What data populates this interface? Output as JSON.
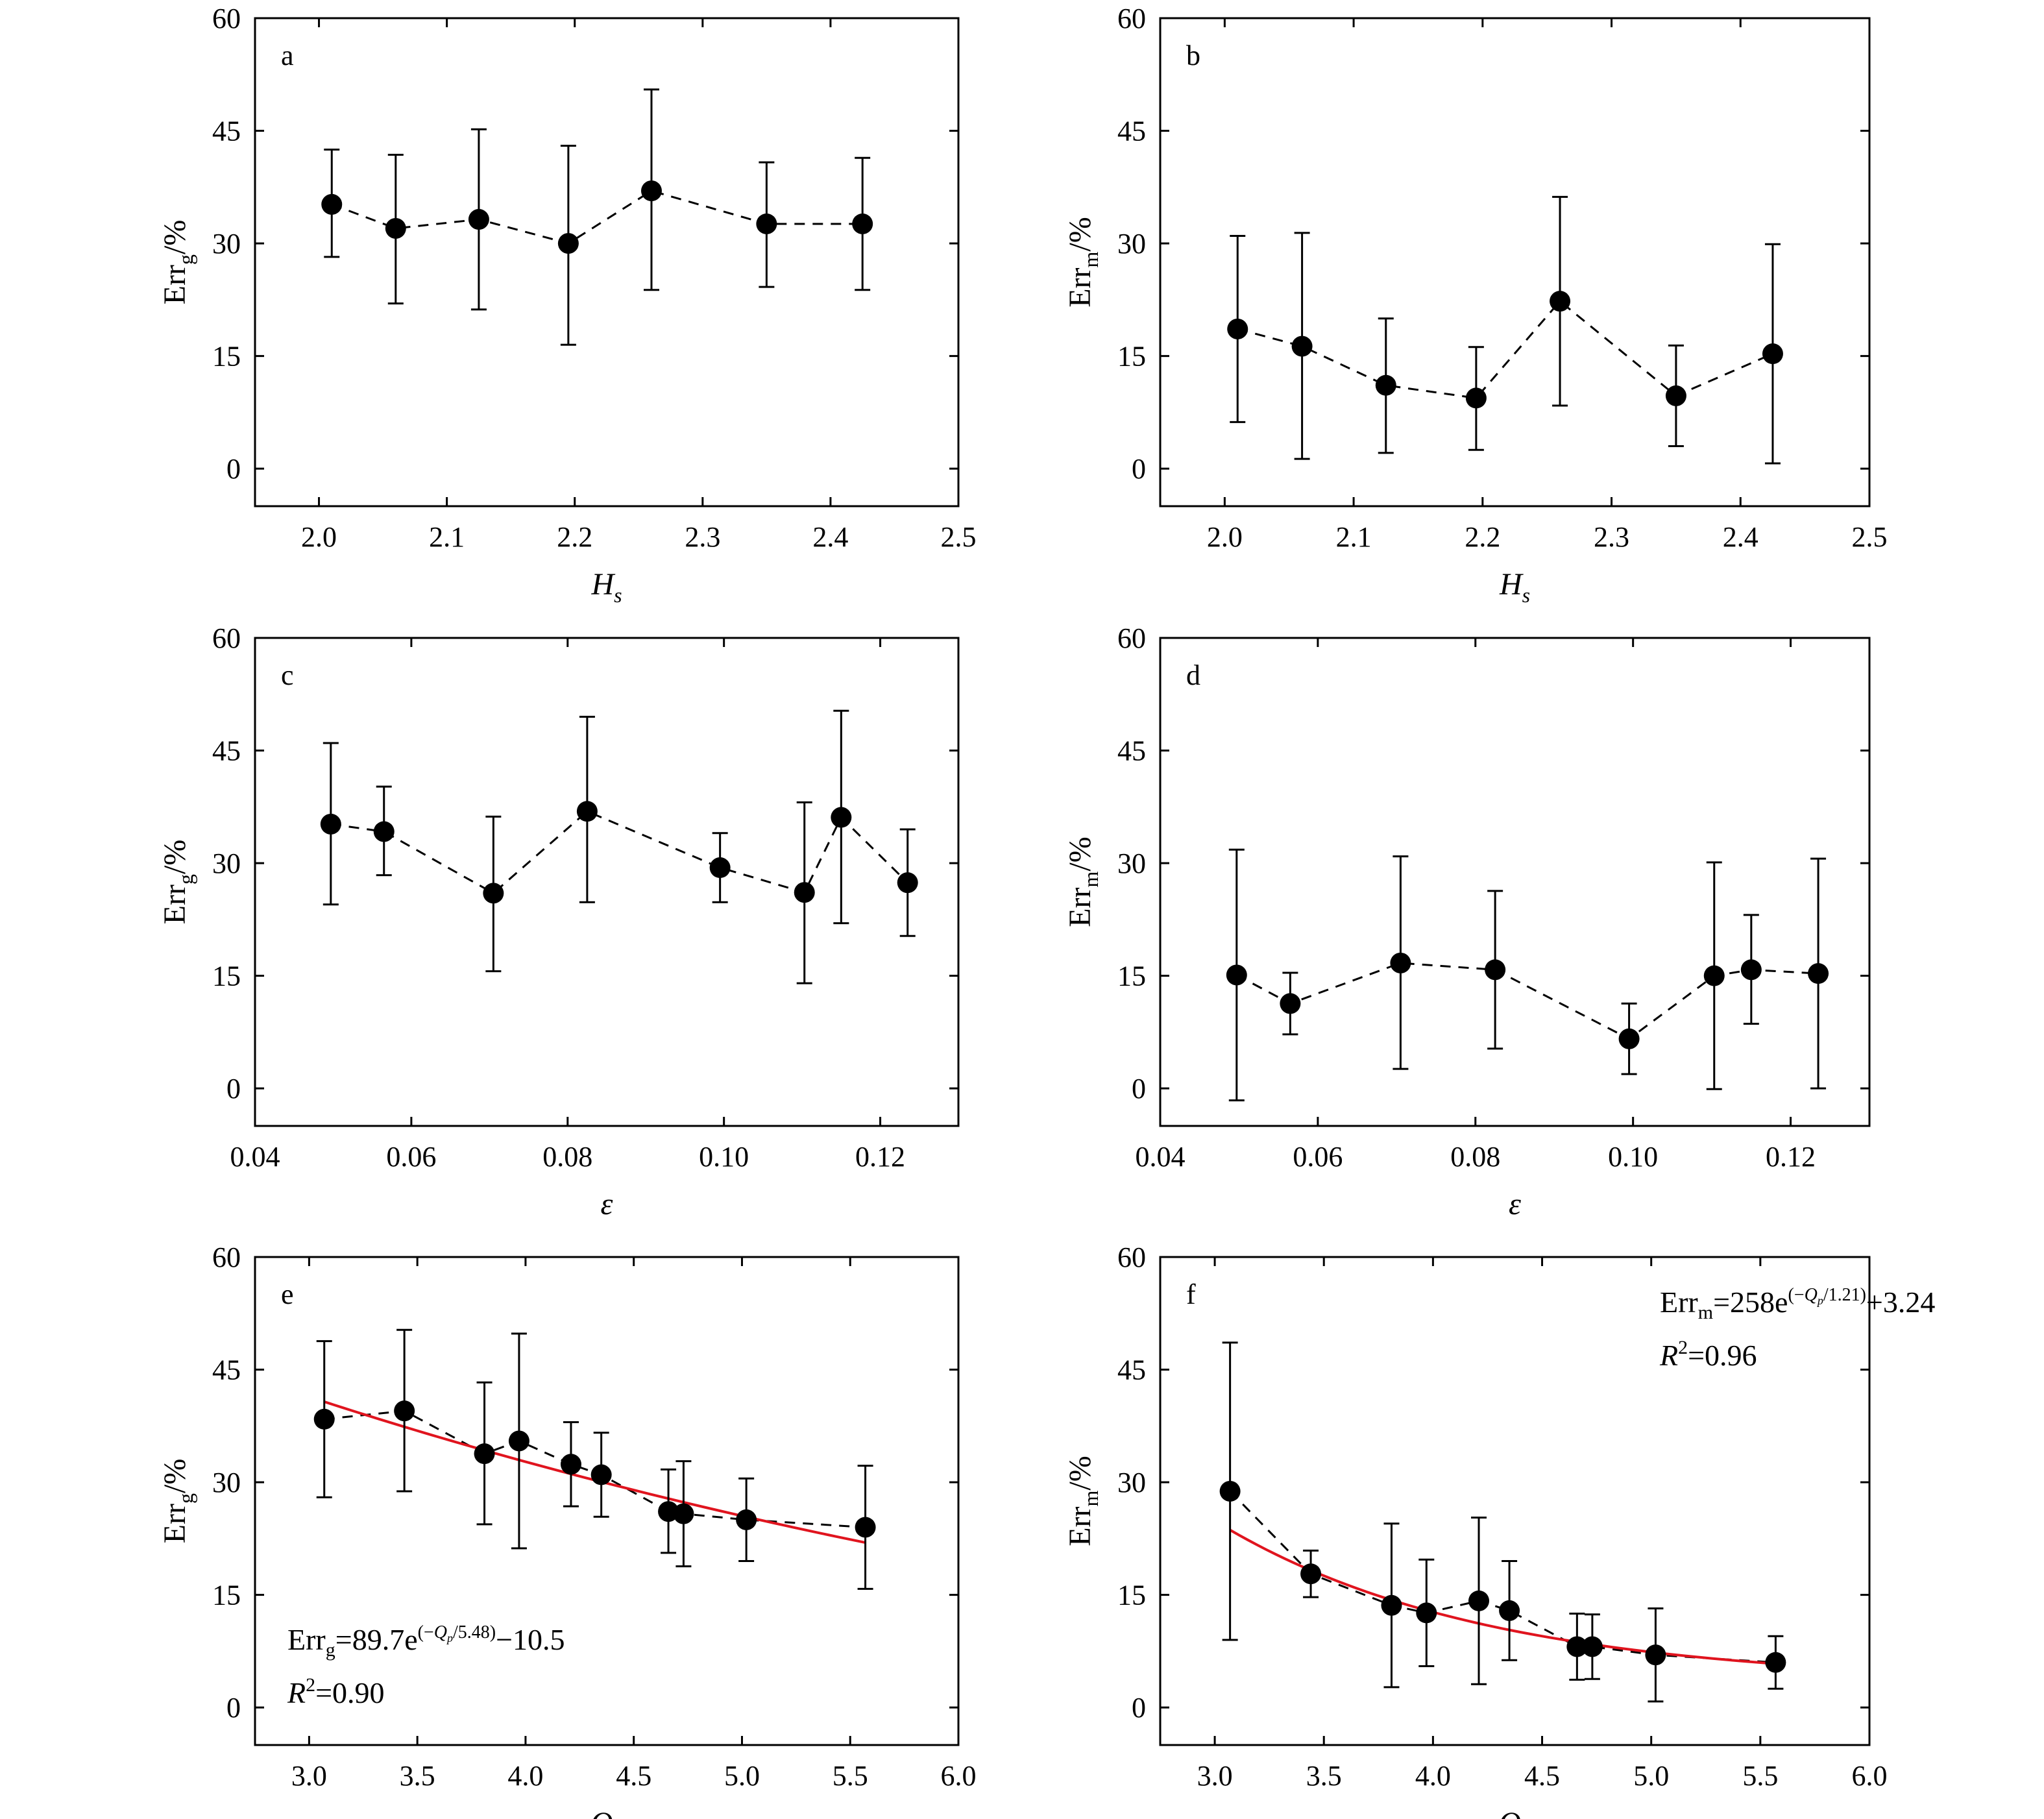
{
  "colors": {
    "data": "#000000",
    "fit": "#e0141e"
  },
  "chart_data": [
    {
      "panel": "a",
      "type": "scatter",
      "xlabel": {
        "base": "H",
        "sub": "s",
        "italic": true
      },
      "ylabel": {
        "base": "Err",
        "sub": "g",
        "suffix": "/%"
      },
      "xlim": [
        1.95,
        2.5
      ],
      "ylim": [
        -5,
        60
      ],
      "xticks": [
        2.0,
        2.1,
        2.2,
        2.3,
        2.4,
        2.5
      ],
      "xtick_labels": [
        "2.0",
        "2.1",
        "2.2",
        "2.3",
        "2.4",
        "2.5"
      ],
      "yticks": [
        0,
        15,
        30,
        45,
        60
      ],
      "ytick_labels": [
        "0",
        "15",
        "30",
        "45",
        "60"
      ],
      "points": [
        {
          "x": 2.01,
          "y": 35.2,
          "lo": 28.2,
          "hi": 42.5
        },
        {
          "x": 2.06,
          "y": 32.0,
          "lo": 22.0,
          "hi": 41.8
        },
        {
          "x": 2.125,
          "y": 33.2,
          "lo": 21.2,
          "hi": 45.2
        },
        {
          "x": 2.195,
          "y": 30.0,
          "lo": 16.5,
          "hi": 43.0
        },
        {
          "x": 2.26,
          "y": 37.0,
          "lo": 23.8,
          "hi": 50.5
        },
        {
          "x": 2.35,
          "y": 32.6,
          "lo": 24.2,
          "hi": 40.8
        },
        {
          "x": 2.425,
          "y": 32.6,
          "lo": 23.8,
          "hi": 41.4
        }
      ]
    },
    {
      "panel": "b",
      "type": "scatter",
      "xlabel": {
        "base": "H",
        "sub": "s",
        "italic": true
      },
      "ylabel": {
        "base": "Err",
        "sub": "m",
        "suffix": "/%"
      },
      "xlim": [
        1.95,
        2.5
      ],
      "ylim": [
        -5,
        60
      ],
      "xticks": [
        2.0,
        2.1,
        2.2,
        2.3,
        2.4,
        2.5
      ],
      "xtick_labels": [
        "2.0",
        "2.1",
        "2.2",
        "2.3",
        "2.4",
        "2.5"
      ],
      "yticks": [
        0,
        15,
        30,
        45,
        60
      ],
      "ytick_labels": [
        "0",
        "15",
        "30",
        "45",
        "60"
      ],
      "points": [
        {
          "x": 2.01,
          "y": 18.6,
          "lo": 6.2,
          "hi": 31.0
        },
        {
          "x": 2.06,
          "y": 16.3,
          "lo": 1.3,
          "hi": 31.4
        },
        {
          "x": 2.125,
          "y": 11.1,
          "lo": 2.1,
          "hi": 20.0
        },
        {
          "x": 2.195,
          "y": 9.4,
          "lo": 2.5,
          "hi": 16.2
        },
        {
          "x": 2.26,
          "y": 22.3,
          "lo": 8.4,
          "hi": 36.2
        },
        {
          "x": 2.35,
          "y": 9.7,
          "lo": 3.0,
          "hi": 16.4
        },
        {
          "x": 2.425,
          "y": 15.3,
          "lo": 0.7,
          "hi": 29.9
        }
      ]
    },
    {
      "panel": "c",
      "type": "scatter",
      "xlabel": {
        "base": "ε",
        "sub": "",
        "italic": true
      },
      "ylabel": {
        "base": "Err",
        "sub": "g",
        "suffix": "/%"
      },
      "xlim": [
        0.04,
        0.13
      ],
      "ylim": [
        -5,
        60
      ],
      "xticks": [
        0.04,
        0.06,
        0.08,
        0.1,
        0.12
      ],
      "xtick_labels": [
        "0.04",
        "0.06",
        "0.08",
        "0.10",
        "0.12"
      ],
      "yticks": [
        0,
        15,
        30,
        45,
        60
      ],
      "ytick_labels": [
        "0",
        "15",
        "30",
        "45",
        "60"
      ],
      "points": [
        {
          "x": 0.0497,
          "y": 35.2,
          "lo": 24.5,
          "hi": 46.0
        },
        {
          "x": 0.0565,
          "y": 34.2,
          "lo": 28.4,
          "hi": 40.2
        },
        {
          "x": 0.0705,
          "y": 26.0,
          "lo": 15.6,
          "hi": 36.2
        },
        {
          "x": 0.0825,
          "y": 36.9,
          "lo": 24.8,
          "hi": 49.5
        },
        {
          "x": 0.0995,
          "y": 29.4,
          "lo": 24.8,
          "hi": 34.0
        },
        {
          "x": 0.1103,
          "y": 26.1,
          "lo": 14.0,
          "hi": 38.1
        },
        {
          "x": 0.115,
          "y": 36.1,
          "lo": 22.0,
          "hi": 50.3
        },
        {
          "x": 0.1235,
          "y": 27.4,
          "lo": 20.3,
          "hi": 34.5
        }
      ]
    },
    {
      "panel": "d",
      "type": "scatter",
      "xlabel": {
        "base": "ε",
        "sub": "",
        "italic": true
      },
      "ylabel": {
        "base": "Err",
        "sub": "m",
        "suffix": "/%"
      },
      "xlim": [
        0.04,
        0.13
      ],
      "ylim": [
        -5,
        60
      ],
      "xticks": [
        0.04,
        0.06,
        0.08,
        0.1,
        0.12
      ],
      "xtick_labels": [
        "0.04",
        "0.06",
        "0.08",
        "0.10",
        "0.12"
      ],
      "yticks": [
        0,
        15,
        30,
        45,
        60
      ],
      "ytick_labels": [
        "0",
        "15",
        "30",
        "45",
        "60"
      ],
      "points": [
        {
          "x": 0.0497,
          "y": 15.1,
          "lo": -1.6,
          "hi": 31.8
        },
        {
          "x": 0.0565,
          "y": 11.3,
          "lo": 7.2,
          "hi": 15.4
        },
        {
          "x": 0.0705,
          "y": 16.7,
          "lo": 2.6,
          "hi": 30.9
        },
        {
          "x": 0.0825,
          "y": 15.8,
          "lo": 5.3,
          "hi": 26.3
        },
        {
          "x": 0.0995,
          "y": 6.6,
          "lo": 1.9,
          "hi": 11.3
        },
        {
          "x": 0.1103,
          "y": 15.0,
          "lo": -0.1,
          "hi": 30.1
        },
        {
          "x": 0.115,
          "y": 15.8,
          "lo": 8.6,
          "hi": 23.1
        },
        {
          "x": 0.1235,
          "y": 15.3,
          "lo": 0.0,
          "hi": 30.6
        }
      ]
    },
    {
      "panel": "e",
      "type": "scatter",
      "xlabel": {
        "base": "Q",
        "sub": "p",
        "italic": true
      },
      "ylabel": {
        "base": "Err",
        "sub": "g",
        "suffix": "/%"
      },
      "xlim": [
        2.75,
        6.0
      ],
      "ylim": [
        -5,
        60
      ],
      "xticks": [
        3.0,
        3.5,
        4.0,
        4.5,
        5.0,
        5.5,
        6.0
      ],
      "xtick_labels": [
        "3.0",
        "3.5",
        "4.0",
        "4.5",
        "5.0",
        "5.5",
        "6.0"
      ],
      "yticks": [
        0,
        15,
        30,
        45,
        60
      ],
      "ytick_labels": [
        "0",
        "15",
        "30",
        "45",
        "60"
      ],
      "points": [
        {
          "x": 3.07,
          "y": 38.4,
          "lo": 28.0,
          "hi": 48.8
        },
        {
          "x": 3.44,
          "y": 39.5,
          "lo": 28.8,
          "hi": 50.3
        },
        {
          "x": 3.81,
          "y": 33.8,
          "lo": 24.4,
          "hi": 43.3
        },
        {
          "x": 3.97,
          "y": 35.5,
          "lo": 21.2,
          "hi": 49.8
        },
        {
          "x": 4.21,
          "y": 32.4,
          "lo": 26.8,
          "hi": 38.0
        },
        {
          "x": 4.35,
          "y": 31.0,
          "lo": 25.4,
          "hi": 36.6
        },
        {
          "x": 4.66,
          "y": 26.1,
          "lo": 20.6,
          "hi": 31.7
        },
        {
          "x": 4.73,
          "y": 25.8,
          "lo": 18.8,
          "hi": 32.8
        },
        {
          "x": 5.02,
          "y": 25.0,
          "lo": 19.5,
          "hi": 30.5
        },
        {
          "x": 5.57,
          "y": 24.0,
          "lo": 15.8,
          "hi": 32.2
        }
      ],
      "fit": {
        "a": 89.7,
        "b": 5.48,
        "c": -10.5,
        "x_from": 3.07,
        "x_to": 5.57
      },
      "equation": {
        "lhs_base": "Err",
        "lhs_sub": "g",
        "coef": "=89.7e",
        "exp_pre": "(−",
        "exp_var": "Q",
        "exp_var_sub": "p",
        "exp_post": "/5.48)",
        "tail": "−10.5"
      },
      "r2": {
        "label": "R",
        "sup": "2",
        "value": "=0.90"
      }
    },
    {
      "panel": "f",
      "type": "scatter",
      "xlabel": {
        "base": "Q",
        "sub": "p",
        "italic": true
      },
      "ylabel": {
        "base": "Err",
        "sub": "m",
        "suffix": "/%"
      },
      "xlim": [
        2.75,
        6.0
      ],
      "ylim": [
        -5,
        60
      ],
      "xticks": [
        3.0,
        3.5,
        4.0,
        4.5,
        5.0,
        5.5,
        6.0
      ],
      "xtick_labels": [
        "3.0",
        "3.5",
        "4.0",
        "4.5",
        "5.0",
        "5.5",
        "6.0"
      ],
      "yticks": [
        0,
        15,
        30,
        45,
        60
      ],
      "ytick_labels": [
        "0",
        "15",
        "30",
        "45",
        "60"
      ],
      "points": [
        {
          "x": 3.07,
          "y": 28.8,
          "lo": 9.0,
          "hi": 48.6
        },
        {
          "x": 3.44,
          "y": 17.8,
          "lo": 14.7,
          "hi": 20.9
        },
        {
          "x": 3.81,
          "y": 13.6,
          "lo": 2.7,
          "hi": 24.5
        },
        {
          "x": 3.97,
          "y": 12.6,
          "lo": 5.5,
          "hi": 19.7
        },
        {
          "x": 4.21,
          "y": 14.2,
          "lo": 3.1,
          "hi": 25.3
        },
        {
          "x": 4.35,
          "y": 12.9,
          "lo": 6.3,
          "hi": 19.5
        },
        {
          "x": 4.66,
          "y": 8.1,
          "lo": 3.7,
          "hi": 12.5
        },
        {
          "x": 4.73,
          "y": 8.1,
          "lo": 3.8,
          "hi": 12.4
        },
        {
          "x": 5.02,
          "y": 7.0,
          "lo": 0.8,
          "hi": 13.2
        },
        {
          "x": 5.57,
          "y": 6.0,
          "lo": 2.5,
          "hi": 9.5
        }
      ],
      "fit": {
        "a": 258,
        "b": 1.21,
        "c": 3.24,
        "x_from": 3.07,
        "x_to": 5.57
      },
      "equation": {
        "lhs_base": "Err",
        "lhs_sub": "m",
        "coef": "=258e",
        "exp_pre": "(−",
        "exp_var": "Q",
        "exp_var_sub": "p",
        "exp_post": "/1.21)",
        "tail": "+3.24"
      },
      "r2": {
        "label": "R",
        "sup": "2",
        "value": "=0.96"
      }
    }
  ]
}
